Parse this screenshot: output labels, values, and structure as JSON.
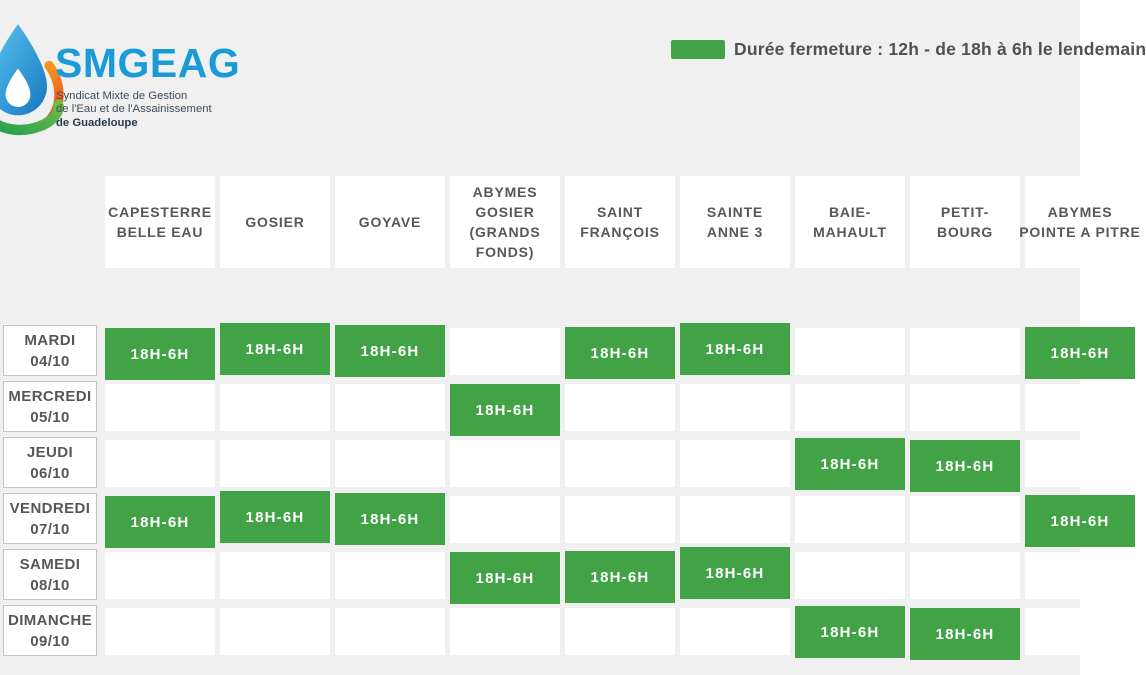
{
  "logo": {
    "name": "SMGEAG",
    "tagline_lines": [
      "Syndicat Mixte de Gestion",
      "de l'Eau et de l'Assainissement",
      "de Guadeloupe"
    ]
  },
  "legend": {
    "label": "Durée fermeture : 12h - de 18h à 6h le lendemain",
    "swatch_color": "#41A346"
  },
  "colors": {
    "closure_green": "#41A346",
    "background": "#EFF0EF",
    "text_dark": "#54585A",
    "logo_blue": "#199BD8"
  },
  "schedule": {
    "closure_label": "18H-6H",
    "columns": [
      {
        "id": "capesterre-belle-eau",
        "lines": [
          "CAPESTERRE",
          "BELLE EAU"
        ]
      },
      {
        "id": "gosier",
        "lines": [
          "GOSIER"
        ]
      },
      {
        "id": "goyave",
        "lines": [
          "GOYAVE"
        ]
      },
      {
        "id": "abymes-gosier-grands-fonds",
        "lines": [
          "ABYMES",
          "GOSIER",
          "(GRANDS",
          "FONDS)"
        ]
      },
      {
        "id": "saint-francois",
        "lines": [
          "SAINT",
          "FRANÇOIS"
        ]
      },
      {
        "id": "sainte-anne-3",
        "lines": [
          "SAINTE",
          "ANNE 3"
        ]
      },
      {
        "id": "baie-mahault",
        "lines": [
          "BAIE-",
          "MAHAULT"
        ]
      },
      {
        "id": "petit-bourg",
        "lines": [
          "PETIT-",
          "BOURG"
        ]
      },
      {
        "id": "abymes-pointe-a-pitre",
        "lines": [
          "ABYMES",
          "POINTE A PITRE"
        ]
      }
    ],
    "rows": [
      {
        "day": "MARDI",
        "date": "04/10",
        "closures": [
          1,
          1,
          1,
          0,
          1,
          1,
          0,
          0,
          1
        ]
      },
      {
        "day": "MERCREDI",
        "date": "05/10",
        "closures": [
          0,
          0,
          0,
          1,
          0,
          0,
          0,
          0,
          0
        ]
      },
      {
        "day": "JEUDI",
        "date": "06/10",
        "closures": [
          0,
          0,
          0,
          0,
          0,
          0,
          1,
          1,
          0
        ]
      },
      {
        "day": "VENDREDI",
        "date": "07/10",
        "closures": [
          1,
          1,
          1,
          0,
          0,
          0,
          0,
          0,
          1
        ]
      },
      {
        "day": "SAMEDI",
        "date": "08/10",
        "closures": [
          0,
          0,
          0,
          1,
          1,
          1,
          0,
          0,
          0
        ]
      },
      {
        "day": "DIMANCHE",
        "date": "09/10",
        "closures": [
          0,
          0,
          0,
          0,
          0,
          0,
          1,
          1,
          0
        ]
      }
    ]
  }
}
